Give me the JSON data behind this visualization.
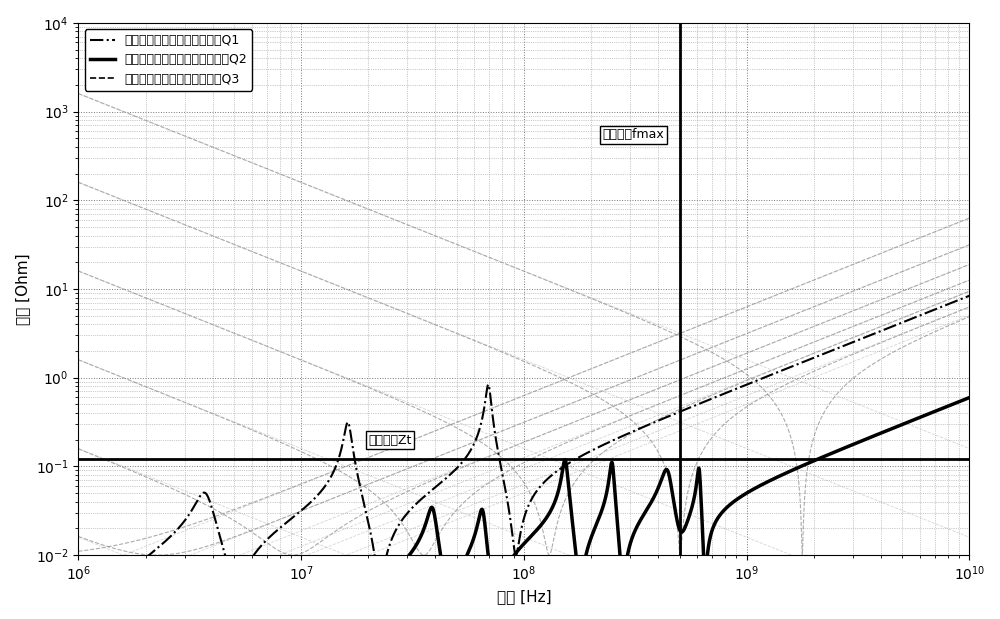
{
  "title": "",
  "xlabel": "频率 [Hz]",
  "ylabel": "阻抗 [Ohm]",
  "xlim": [
    1000000.0,
    10000000000.0
  ],
  "ylim": [
    0.01,
    10000.0
  ],
  "fmax": 500000000.0,
  "zt": 0.12,
  "legend_labels": [
    "初始的电源分配网络阻抗曲线Q1",
    "优化后的电源分配网络阻抗曲线Q2",
    "已选用并联电容器的阻抗曲线Q3"
  ],
  "annotation_fmax": "目标频率fmax",
  "annotation_zt": "目标阻抗Zt",
  "background_color": "#ffffff",
  "grid_color": "#aaaaaa"
}
